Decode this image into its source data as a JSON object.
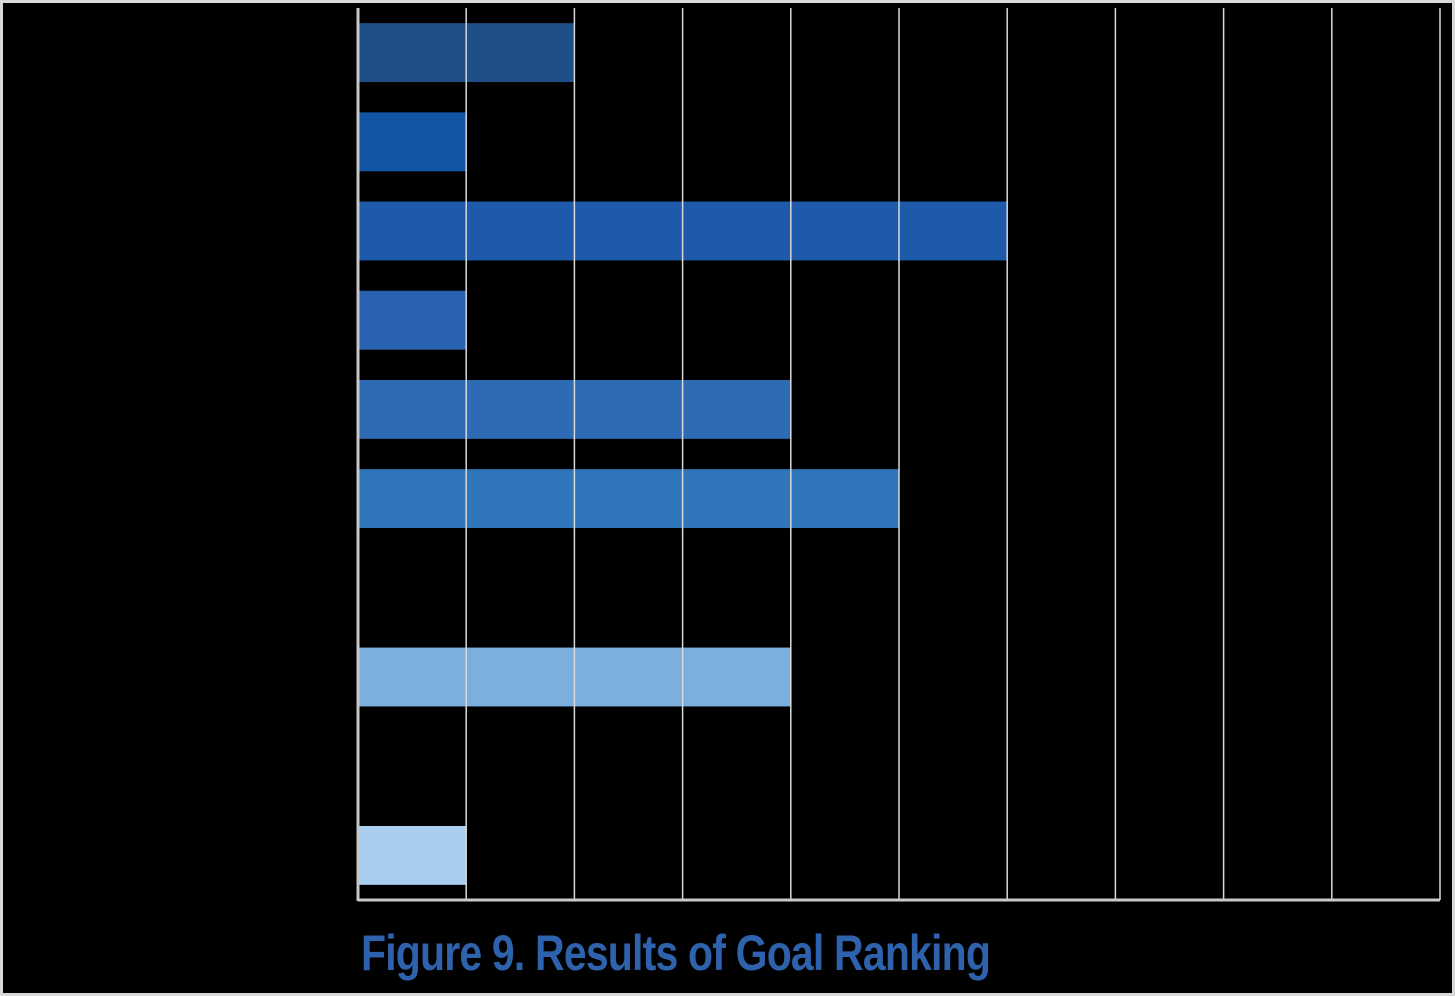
{
  "chart_data": {
    "type": "bar",
    "orientation": "horizontal",
    "title": "",
    "caption": "Figure 9. Results of Goal Ranking",
    "categories": [
      "",
      "",
      "",
      "",
      "",
      "",
      "",
      "",
      "",
      ""
    ],
    "values": [
      2,
      1,
      6,
      1,
      4,
      5,
      0,
      4,
      0,
      1
    ],
    "xlim": [
      0,
      10
    ],
    "x_tick_count": 10,
    "xlabel": "",
    "ylabel": "",
    "grid": true,
    "legend": "none",
    "bar_colors": [
      "#1f4e89",
      "#1155a4",
      "#1e5aaa",
      "#2862b0",
      "#2e6bb5",
      "#2e75bb",
      "#5a95cf",
      "#7aafde",
      "#94c0e6",
      "#a9cdef"
    ],
    "gridline_color": "#d9d9d9",
    "axis_color": "#c8c8c8",
    "caption_color": "#2e62ac"
  }
}
